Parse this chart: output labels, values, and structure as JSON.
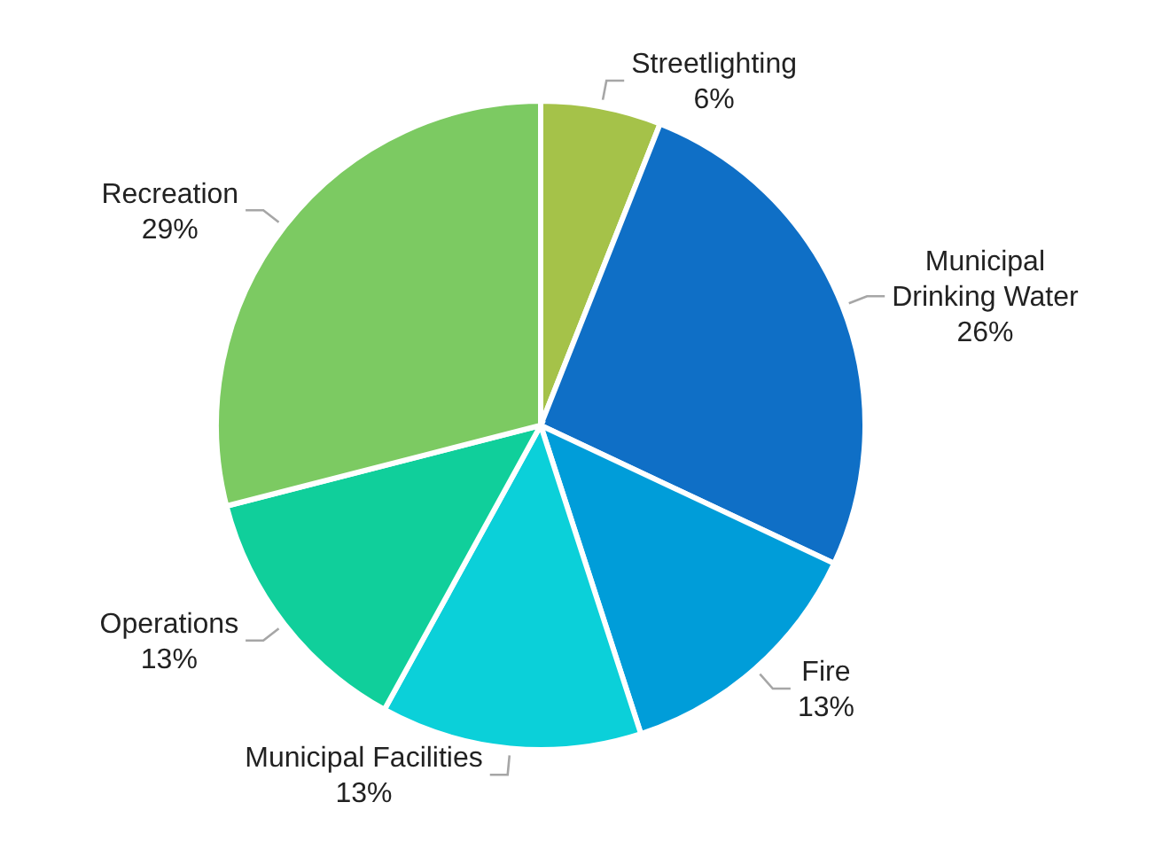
{
  "chart_data": {
    "type": "pie",
    "categories": [
      "Streetlighting",
      "Municipal Drinking Water",
      "Fire",
      "Municipal Facilities",
      "Operations",
      "Recreation"
    ],
    "values": [
      6,
      26,
      13,
      13,
      13,
      29
    ],
    "value_labels": [
      "6%",
      "26%",
      "13%",
      "13%",
      "13%",
      "29%"
    ],
    "colors": [
      "#a5c249",
      "#0f6fc6",
      "#009dd9",
      "#0bd0d9",
      "#10cf9b",
      "#7cca62"
    ]
  }
}
